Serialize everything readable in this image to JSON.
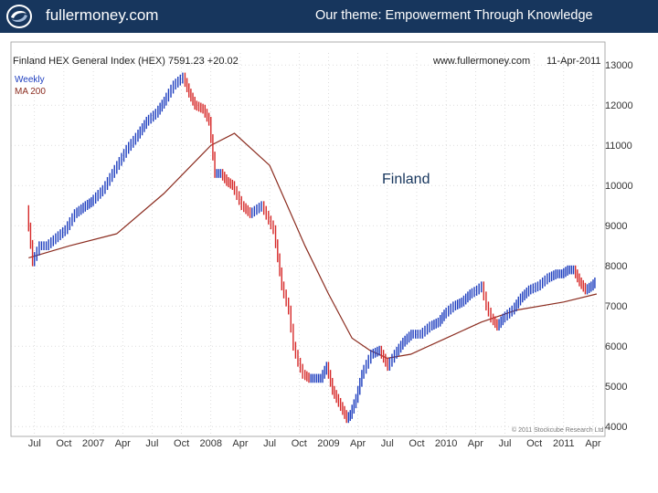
{
  "header": {
    "brand": "fullermoney.com",
    "theme": "Our theme: Empowerment Through Knowledge",
    "logo_icon": "swirl-logo-icon",
    "bg_color": "#17365d"
  },
  "chart_data": {
    "type": "bar",
    "subtype": "weekly-ohlc",
    "title": "Finland HEX General Index (HEX) 7591.23 +20.02",
    "source": "www.fullermoney.com",
    "date": "11-Apr-2011",
    "periodicity": "Weekly",
    "overlay_label": "Finland",
    "copyright": "© 2011 Stockcube Research Ltd",
    "x_ticks": [
      "Jul",
      "Oct",
      "2007",
      "Apr",
      "Jul",
      "Oct",
      "2008",
      "Apr",
      "Jul",
      "Oct",
      "2009",
      "Apr",
      "Jul",
      "Oct",
      "2010",
      "Apr",
      "Jul",
      "Oct",
      "2011",
      "Apr"
    ],
    "x_range": [
      "2006-06",
      "2011-04"
    ],
    "y_ticks": [
      4000,
      5000,
      6000,
      7000,
      8000,
      9000,
      10000,
      11000,
      12000,
      13000
    ],
    "ylim": [
      3800,
      13300
    ],
    "y_axis_side": "right",
    "grid": "dotted",
    "up_color": "#1f3fbf",
    "down_color": "#d62a2a",
    "series": [
      {
        "name": "Weekly",
        "x": [
          2006.45,
          2006.5,
          2006.56,
          2006.62,
          2006.7,
          2006.78,
          2006.86,
          2006.95,
          2007.0,
          2007.1,
          2007.2,
          2007.3,
          2007.38,
          2007.47,
          2007.55,
          2007.62,
          2007.7,
          2007.78,
          2007.83,
          2007.88,
          2007.95,
          2008.0,
          2008.05,
          2008.1,
          2008.15,
          2008.2,
          2008.28,
          2008.35,
          2008.45,
          2008.55,
          2008.62,
          2008.68,
          2008.72,
          2008.76,
          2008.8,
          2008.85,
          2008.9,
          2008.95,
          2009.0,
          2009.05,
          2009.12,
          2009.17,
          2009.2,
          2009.25,
          2009.3,
          2009.38,
          2009.45,
          2009.52,
          2009.58,
          2009.65,
          2009.72,
          2009.8,
          2009.88,
          2009.95,
          2010.0,
          2010.08,
          2010.15,
          2010.22,
          2010.28,
          2010.32,
          2010.36,
          2010.4,
          2010.45,
          2010.5,
          2010.58,
          2010.65,
          2010.72,
          2010.8,
          2010.88,
          2010.95,
          2011.0,
          2011.05,
          2011.1,
          2011.15,
          2011.2,
          2011.25,
          2011.28
        ],
        "values": [
          9400,
          8100,
          8500,
          8500,
          8700,
          8900,
          9300,
          9500,
          9600,
          9900,
          10400,
          10900,
          11200,
          11600,
          11800,
          12100,
          12500,
          12700,
          12300,
          12000,
          11900,
          11600,
          10300,
          10300,
          10100,
          10000,
          9500,
          9300,
          9500,
          8900,
          7500,
          6900,
          6000,
          5600,
          5300,
          5200,
          5200,
          5200,
          5500,
          4900,
          4500,
          4200,
          4300,
          4700,
          5300,
          5800,
          5900,
          5500,
          5800,
          6100,
          6300,
          6300,
          6500,
          6600,
          6800,
          7000,
          7100,
          7300,
          7400,
          7500,
          7000,
          6700,
          6500,
          6700,
          6900,
          7200,
          7400,
          7500,
          7700,
          7800,
          7800,
          7900,
          7900,
          7600,
          7400,
          7500,
          7600
        ]
      },
      {
        "name": "MA 200",
        "color": "#8b2c1f",
        "x": [
          2006.45,
          2006.8,
          2007.2,
          2007.6,
          2007.9,
          2008.0,
          2008.2,
          2008.5,
          2008.8,
          2009.0,
          2009.2,
          2009.35,
          2009.5,
          2009.7,
          2010.0,
          2010.3,
          2010.6,
          2011.0,
          2011.28
        ],
        "values": [
          8200,
          8500,
          8800,
          9800,
          10700,
          11000,
          11300,
          10500,
          8500,
          7300,
          6200,
          5900,
          5700,
          5800,
          6200,
          6600,
          6900,
          7100,
          7300
        ]
      }
    ]
  }
}
